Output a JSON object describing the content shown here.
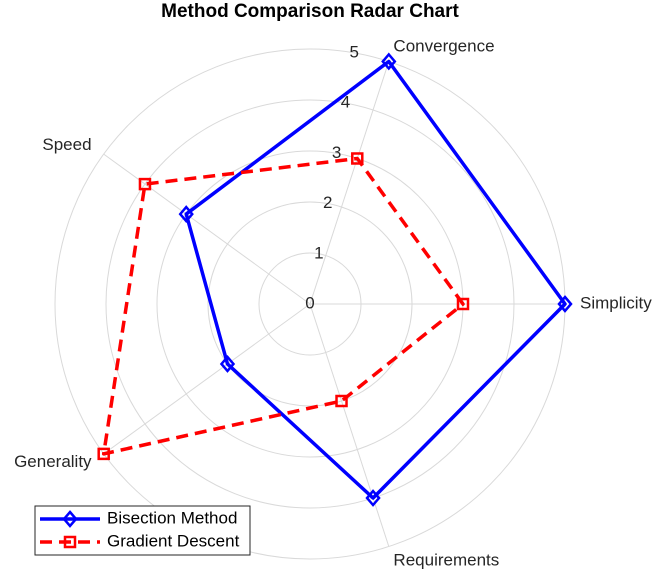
{
  "chart_data": {
    "type": "radar",
    "title": "Method Comparison Radar Chart",
    "categories": [
      "Simplicity",
      "Convergence",
      "Speed",
      "Generality",
      "Requirements"
    ],
    "series": [
      {
        "name": "Bisection Method",
        "color": "#0000ff",
        "marker": "diamond",
        "dash": "solid",
        "values": [
          5,
          5,
          3,
          2,
          4
        ]
      },
      {
        "name": "Gradient Descent",
        "color": "#ff0000",
        "marker": "square",
        "dash": "dashed",
        "values": [
          3,
          3,
          4,
          5,
          2
        ]
      }
    ],
    "rlim": [
      0,
      5
    ],
    "rticks": [
      0,
      1,
      2,
      3,
      4,
      5
    ],
    "grid": true,
    "legend": "lower left"
  }
}
